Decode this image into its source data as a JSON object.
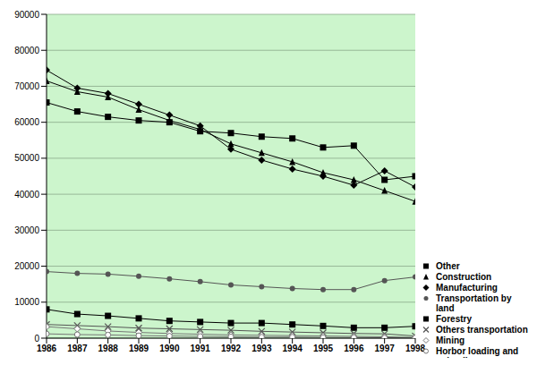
{
  "chart_data": {
    "type": "line",
    "x": [
      1986,
      1987,
      1988,
      1989,
      1990,
      1991,
      1992,
      1993,
      1994,
      1995,
      1996,
      1997,
      1998
    ],
    "xlim": [
      1986,
      1998
    ],
    "xticks": [
      1986,
      1987,
      1988,
      1989,
      1990,
      1991,
      1992,
      1993,
      1994,
      1995,
      1996,
      1997,
      1998
    ],
    "ylim": [
      0,
      90000
    ],
    "yticks": [
      0,
      10000,
      20000,
      30000,
      40000,
      50000,
      60000,
      70000,
      80000,
      90000
    ],
    "grid": true,
    "legend": "lower right",
    "series": [
      {
        "name": "Other",
        "color": "#000000",
        "marker": "square",
        "values": [
          65500,
          63000,
          61500,
          60500,
          60000,
          57500,
          57000,
          56000,
          55500,
          53000,
          53500,
          44000,
          45000
        ]
      },
      {
        "name": "Construction",
        "color": "#000000",
        "marker": "triangle",
        "values": [
          71500,
          68500,
          67000,
          63500,
          60500,
          58000,
          54000,
          51500,
          49000,
          46000,
          44000,
          41000,
          38000
        ]
      },
      {
        "name": "Manufacturing",
        "color": "#000000",
        "marker": "diamond",
        "values": [
          74500,
          69500,
          68000,
          65000,
          62000,
          59000,
          52500,
          49500,
          47000,
          45000,
          42500,
          46500,
          42000
        ]
      },
      {
        "name": "Transportation by land",
        "color": "#555555",
        "marker": "circle",
        "values": [
          18500,
          18000,
          17800,
          17200,
          16500,
          15700,
          14800,
          14300,
          13800,
          13500,
          13500,
          16000,
          17000
        ]
      },
      {
        "name": "Forestry",
        "color": "#000000",
        "marker": "square",
        "values": [
          8000,
          6700,
          6200,
          5500,
          4800,
          4500,
          4200,
          4200,
          3800,
          3400,
          2900,
          2900,
          3300
        ]
      },
      {
        "name": "Others transportation",
        "color": "#555555",
        "marker": "x",
        "values": [
          3800,
          3500,
          3200,
          2800,
          2600,
          2400,
          2200,
          1900,
          1700,
          1500,
          1300,
          1200,
          600
        ]
      },
      {
        "name": "Mining",
        "color": "#777777",
        "marker": "open_diamond",
        "values": [
          3200,
          2600,
          2000,
          1600,
          1300,
          1100,
          900,
          800,
          700,
          600,
          500,
          400,
          200
        ]
      },
      {
        "name": "Horbor loading and unloading",
        "color": "#777777",
        "marker": "open_circle",
        "values": [
          1200,
          1000,
          900,
          700,
          600,
          500,
          400,
          300,
          300,
          200,
          200,
          100,
          100
        ]
      }
    ]
  }
}
